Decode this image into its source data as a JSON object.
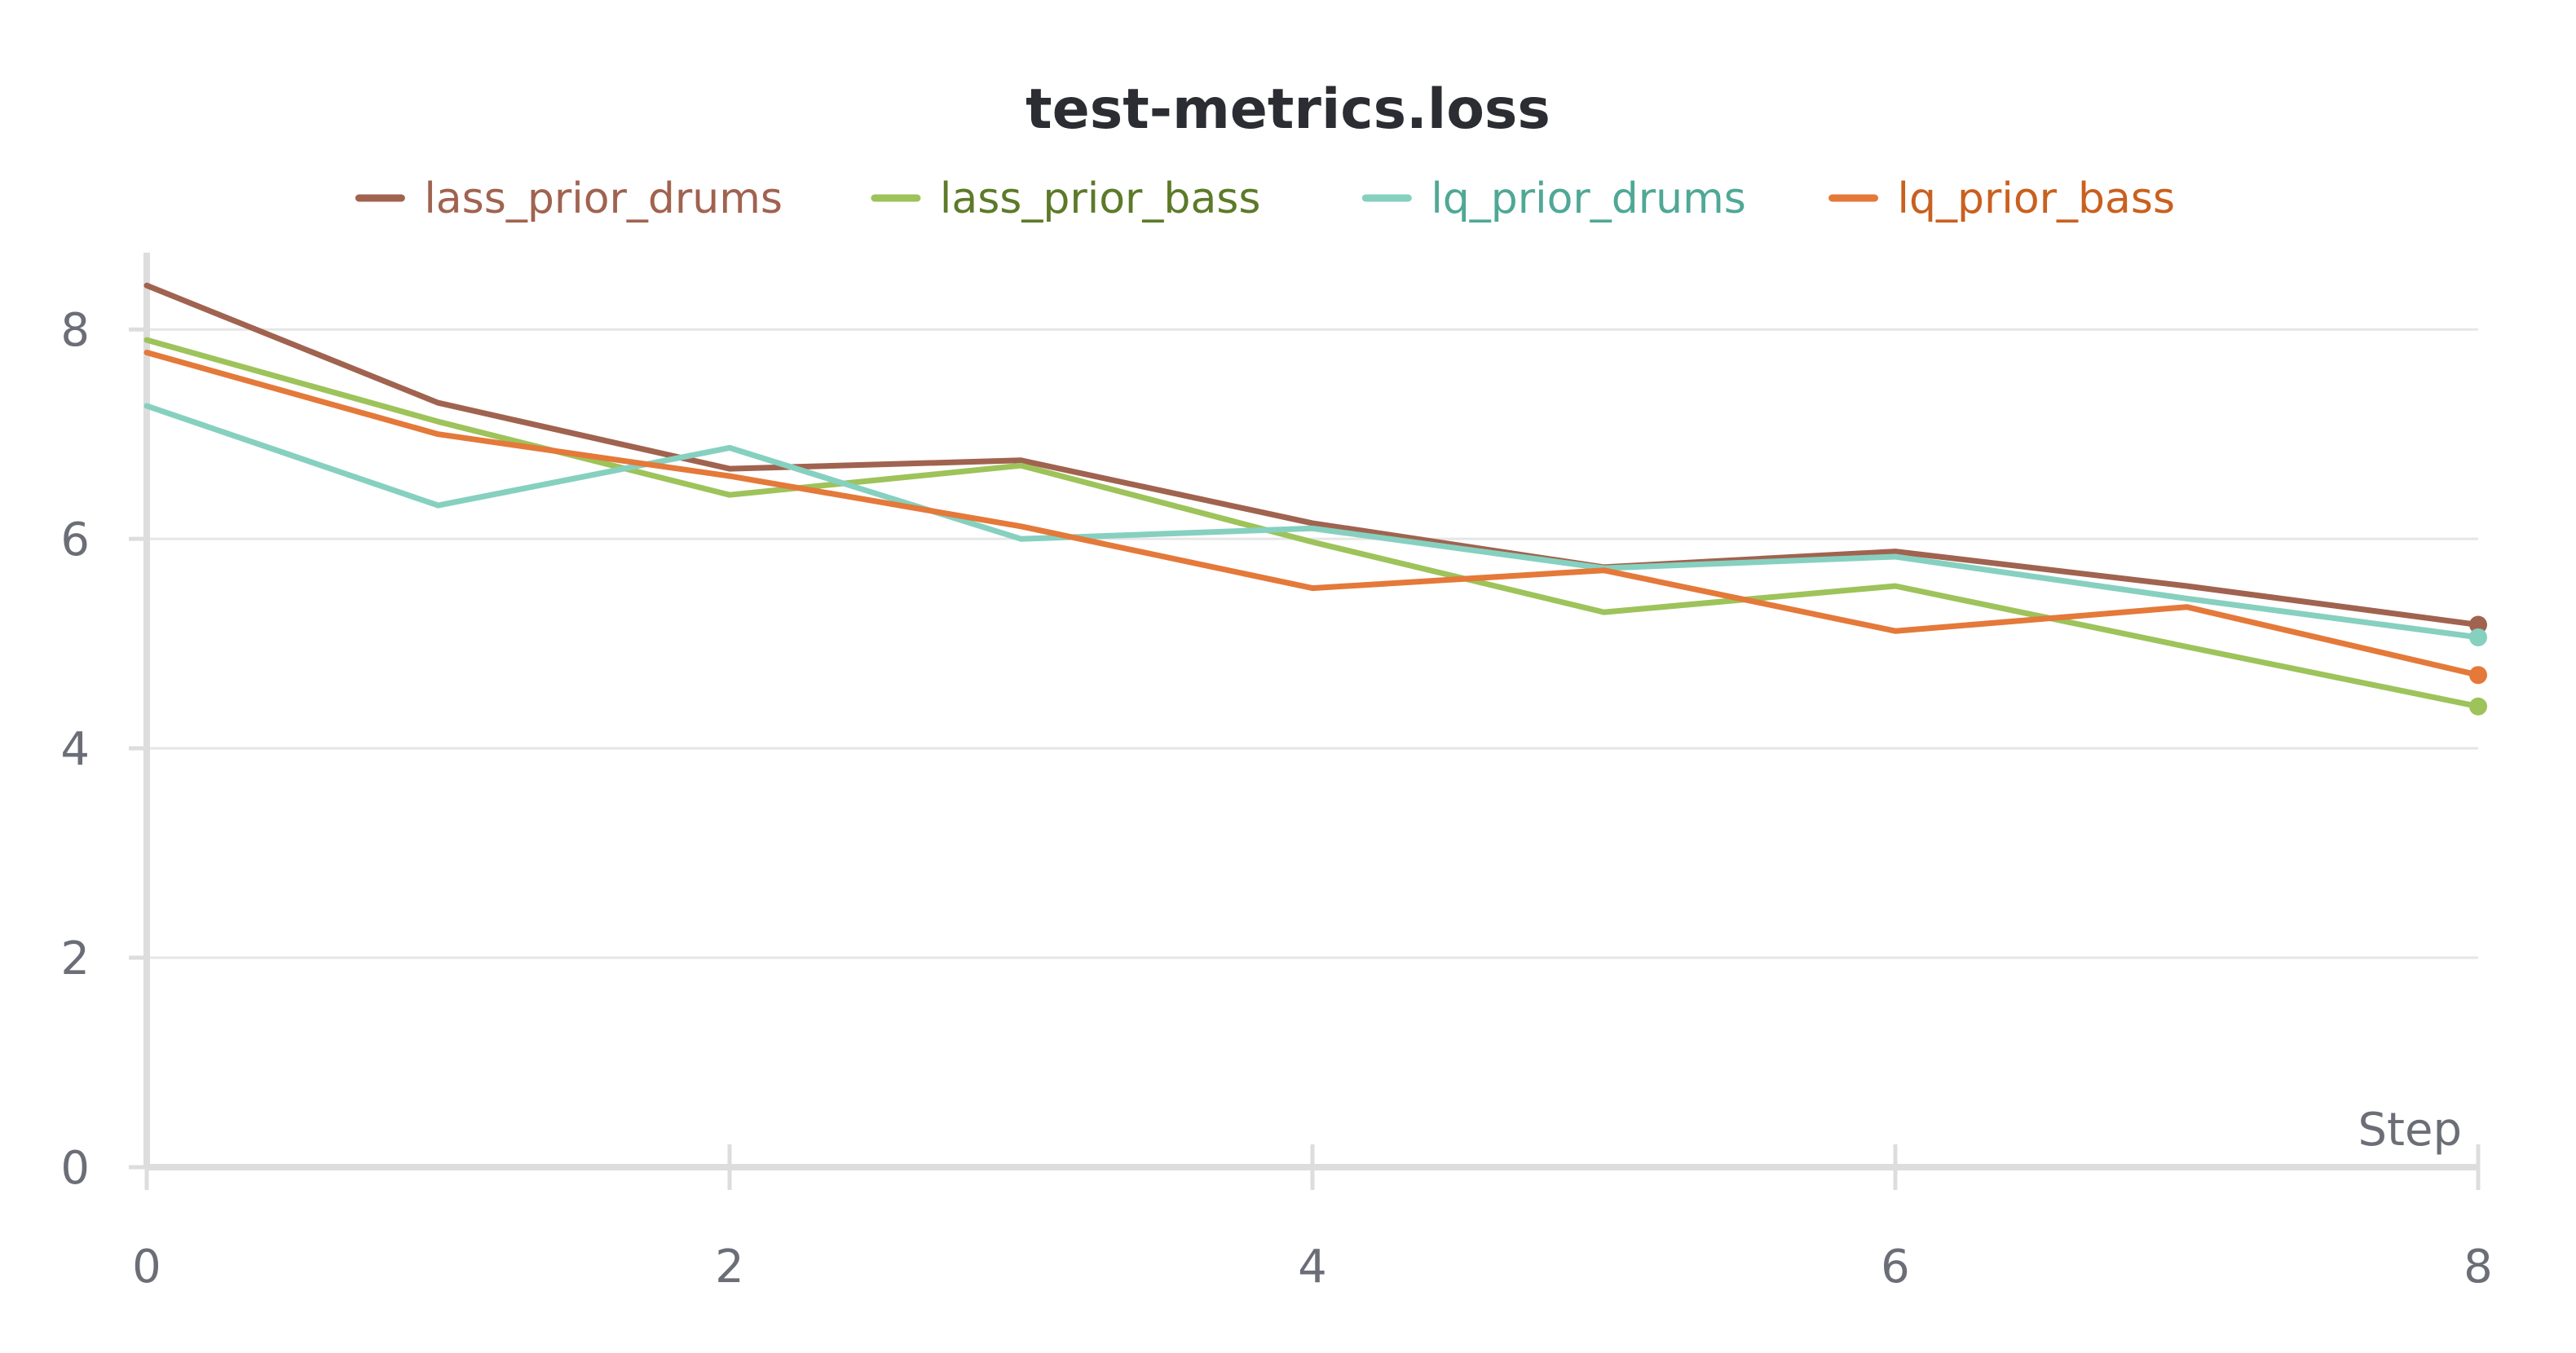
{
  "chart_data": {
    "type": "line",
    "title": "test-metrics.loss",
    "xlabel": "Step",
    "ylabel": "",
    "x": [
      0,
      1,
      2,
      3,
      4,
      5,
      6,
      7,
      8
    ],
    "xlim": [
      0,
      8
    ],
    "ylim": [
      0,
      8.5
    ],
    "xticks": [
      0,
      2,
      4,
      6,
      8
    ],
    "yticks": [
      0,
      2,
      4,
      6,
      8
    ],
    "grid": true,
    "legend_position": "top-center",
    "series": [
      {
        "name": "lass_prior_drums",
        "color": "#a0634f",
        "label_color": "#a0634f",
        "values": [
          8.42,
          7.3,
          6.67,
          6.75,
          6.15,
          5.73,
          5.88,
          5.55,
          5.18
        ]
      },
      {
        "name": "lass_prior_bass",
        "color": "#9dc35a",
        "label_color": "#5c7a28",
        "values": [
          7.9,
          7.12,
          6.42,
          6.7,
          5.97,
          5.3,
          5.55,
          4.97,
          4.4
        ]
      },
      {
        "name": "lq_prior_drums",
        "color": "#86d0c0",
        "label_color": "#4fa895",
        "values": [
          7.27,
          6.32,
          6.87,
          6.0,
          6.1,
          5.72,
          5.83,
          5.43,
          5.06
        ]
      },
      {
        "name": "lq_prior_bass",
        "color": "#e4793a",
        "label_color": "#c9601f",
        "values": [
          7.78,
          7.0,
          6.6,
          6.12,
          5.53,
          5.7,
          5.12,
          5.35,
          4.7
        ]
      }
    ]
  }
}
